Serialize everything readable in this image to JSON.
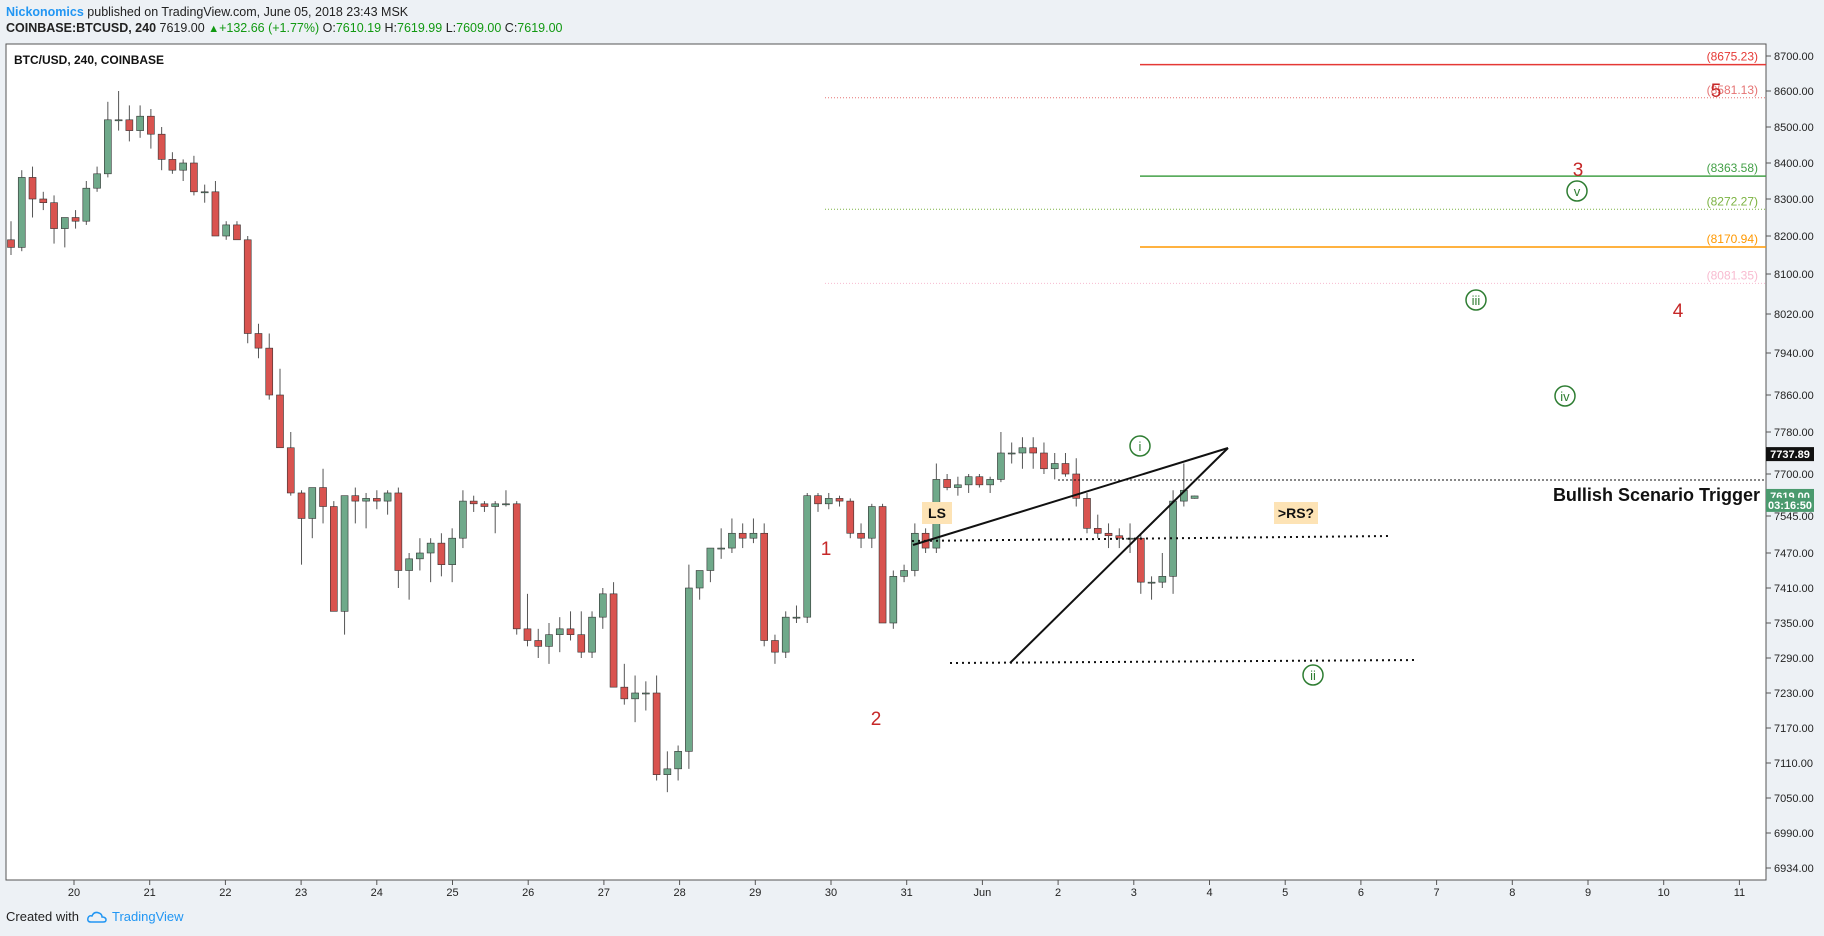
{
  "header": {
    "author": "Nickonomics",
    "published_text": "published on TradingView.com, June 05, 2018 23:43 MSK",
    "symbol_text": "COINBASE:BTCUSD, 240",
    "last": "7619.00",
    "change": "+132.66 (+1.77%)",
    "open_label": "O:",
    "open": "7610.19",
    "high_label": "H:",
    "high": "7619.99",
    "low_label": "L:",
    "low": "7609.00",
    "close_label": "C:",
    "close": "7619.00"
  },
  "footer": {
    "created_with": "Created with",
    "brand": "TradingView"
  },
  "chart_data": {
    "type": "candlestick",
    "title": "BTC/USD, 240, COINBASE",
    "ylim": [
      6900,
      8740
    ],
    "y_ticks": [
      "8700.00",
      "8600.00",
      "8500.00",
      "8400.00",
      "8300.00",
      "8200.00",
      "8100.00",
      "8020.00",
      "7940.00",
      "7860.00",
      "7780.00",
      "7700.00",
      "7545.00",
      "7470.00",
      "7410.00",
      "7350.00",
      "7290.00",
      "7230.00",
      "7170.00",
      "7110.00",
      "7050.00",
      "6990.00",
      "6934.00"
    ],
    "x_ticks": [
      "20",
      "21",
      "22",
      "23",
      "24",
      "25",
      "26",
      "27",
      "28",
      "29",
      "30",
      "31",
      "Jun",
      "2",
      "3",
      "4",
      "5",
      "6",
      "7",
      "8",
      "9",
      "10",
      "11"
    ],
    "candles": [
      [
        8190,
        8240,
        8150,
        8170
      ],
      [
        8170,
        8380,
        8160,
        8360
      ],
      [
        8360,
        8390,
        8250,
        8300
      ],
      [
        8300,
        8320,
        8270,
        8290
      ],
      [
        8290,
        8310,
        8180,
        8220
      ],
      [
        8220,
        8250,
        8170,
        8250
      ],
      [
        8250,
        8270,
        8220,
        8240
      ],
      [
        8240,
        8350,
        8230,
        8330
      ],
      [
        8330,
        8390,
        8320,
        8370
      ],
      [
        8370,
        8570,
        8360,
        8520
      ],
      [
        8520,
        8600,
        8490,
        8520
      ],
      [
        8520,
        8560,
        8460,
        8490
      ],
      [
        8490,
        8560,
        8470,
        8530
      ],
      [
        8530,
        8550,
        8440,
        8480
      ],
      [
        8480,
        8500,
        8380,
        8410
      ],
      [
        8410,
        8430,
        8370,
        8380
      ],
      [
        8380,
        8410,
        8350,
        8400
      ],
      [
        8400,
        8420,
        8310,
        8320
      ],
      [
        8320,
        8340,
        8290,
        8320
      ],
      [
        8320,
        8350,
        8200,
        8200
      ],
      [
        8200,
        8240,
        8190,
        8230
      ],
      [
        8230,
        8240,
        8190,
        8190
      ],
      [
        8190,
        8200,
        7960,
        7980
      ],
      [
        7980,
        8000,
        7930,
        7950
      ],
      [
        7950,
        7980,
        7850,
        7860
      ],
      [
        7860,
        7910,
        7750,
        7750
      ],
      [
        7750,
        7780,
        7620,
        7630
      ],
      [
        7630,
        7640,
        7450,
        7540
      ],
      [
        7540,
        7640,
        7500,
        7650
      ],
      [
        7650,
        7710,
        7530,
        7580
      ],
      [
        7580,
        7600,
        7370,
        7370
      ],
      [
        7370,
        7620,
        7330,
        7620
      ],
      [
        7620,
        7650,
        7530,
        7600
      ],
      [
        7600,
        7630,
        7520,
        7610
      ],
      [
        7610,
        7640,
        7570,
        7600
      ],
      [
        7600,
        7640,
        7550,
        7630
      ],
      [
        7630,
        7650,
        7410,
        7440
      ],
      [
        7440,
        7470,
        7390,
        7460
      ],
      [
        7460,
        7500,
        7440,
        7470
      ],
      [
        7470,
        7500,
        7420,
        7490
      ],
      [
        7490,
        7510,
        7430,
        7450
      ],
      [
        7450,
        7520,
        7420,
        7500
      ],
      [
        7500,
        7640,
        7480,
        7600
      ],
      [
        7600,
        7620,
        7560,
        7590
      ],
      [
        7590,
        7600,
        7560,
        7580
      ],
      [
        7580,
        7600,
        7510,
        7590
      ],
      [
        7590,
        7640,
        7580,
        7590
      ],
      [
        7590,
        7600,
        7330,
        7340
      ],
      [
        7340,
        7400,
        7310,
        7320
      ],
      [
        7320,
        7340,
        7290,
        7310
      ],
      [
        7310,
        7350,
        7280,
        7330
      ],
      [
        7330,
        7360,
        7300,
        7340
      ],
      [
        7340,
        7370,
        7320,
        7330
      ],
      [
        7330,
        7370,
        7290,
        7300
      ],
      [
        7300,
        7370,
        7290,
        7360
      ],
      [
        7360,
        7410,
        7340,
        7400
      ],
      [
        7400,
        7420,
        7240,
        7240
      ],
      [
        7240,
        7280,
        7210,
        7220
      ],
      [
        7220,
        7260,
        7180,
        7230
      ],
      [
        7230,
        7250,
        7200,
        7230
      ],
      [
        7230,
        7260,
        7080,
        7090
      ],
      [
        7090,
        7130,
        7060,
        7100
      ],
      [
        7100,
        7140,
        7080,
        7130
      ],
      [
        7130,
        7450,
        7100,
        7410
      ],
      [
        7410,
        7440,
        7390,
        7440
      ],
      [
        7440,
        7480,
        7420,
        7480
      ],
      [
        7480,
        7520,
        7460,
        7480
      ],
      [
        7480,
        7540,
        7470,
        7510
      ],
      [
        7510,
        7530,
        7480,
        7500
      ],
      [
        7500,
        7540,
        7490,
        7510
      ],
      [
        7510,
        7530,
        7310,
        7320
      ],
      [
        7320,
        7330,
        7280,
        7300
      ],
      [
        7300,
        7370,
        7290,
        7360
      ],
      [
        7360,
        7380,
        7350,
        7360
      ],
      [
        7360,
        7630,
        7350,
        7620
      ],
      [
        7620,
        7630,
        7560,
        7590
      ],
      [
        7590,
        7630,
        7570,
        7610
      ],
      [
        7610,
        7620,
        7580,
        7600
      ],
      [
        7600,
        7610,
        7500,
        7510
      ],
      [
        7510,
        7530,
        7480,
        7500
      ],
      [
        7500,
        7590,
        7480,
        7580
      ],
      [
        7580,
        7590,
        7350,
        7350
      ],
      [
        7350,
        7440,
        7340,
        7430
      ],
      [
        7430,
        7450,
        7420,
        7440
      ],
      [
        7440,
        7530,
        7430,
        7510
      ],
      [
        7510,
        7520,
        7470,
        7480
      ],
      [
        7480,
        7720,
        7470,
        7680
      ],
      [
        7680,
        7700,
        7640,
        7650
      ],
      [
        7650,
        7690,
        7620,
        7660
      ],
      [
        7660,
        7700,
        7630,
        7690
      ],
      [
        7690,
        7700,
        7650,
        7660
      ],
      [
        7660,
        7690,
        7630,
        7680
      ],
      [
        7680,
        7780,
        7670,
        7740
      ],
      [
        7740,
        7760,
        7720,
        7740
      ],
      [
        7740,
        7770,
        7710,
        7750
      ],
      [
        7750,
        7770,
        7710,
        7740
      ],
      [
        7740,
        7760,
        7700,
        7710
      ],
      [
        7710,
        7740,
        7680,
        7720
      ],
      [
        7720,
        7740,
        7690,
        7700
      ],
      [
        7700,
        7730,
        7580,
        7610
      ],
      [
        7610,
        7630,
        7510,
        7520
      ],
      [
        7520,
        7550,
        7500,
        7510
      ],
      [
        7510,
        7530,
        7480,
        7505
      ],
      [
        7505,
        7520,
        7480,
        7500
      ],
      [
        7500,
        7530,
        7470,
        7500
      ],
      [
        7500,
        7510,
        7400,
        7420
      ],
      [
        7420,
        7430,
        7390,
        7420
      ],
      [
        7420,
        7470,
        7410,
        7430
      ],
      [
        7430,
        7640,
        7400,
        7600
      ],
      [
        7600,
        7720,
        7580,
        7640
      ],
      [
        7610,
        7620,
        7609,
        7619
      ]
    ],
    "fib_levels": [
      {
        "label": "(8675.23)",
        "value": 8675.23,
        "color": "#e53935"
      },
      {
        "label": "(8581.13)",
        "value": 8581.13,
        "color": "#e57373"
      },
      {
        "label": "(8363.58)",
        "value": 8363.58,
        "color": "#43a047"
      },
      {
        "label": "(8272.27)",
        "value": 8272.27,
        "color": "#7cb342"
      },
      {
        "label": "(8170.94)",
        "value": 8170.94,
        "color": "#ff9800"
      },
      {
        "label": "(8081.35)",
        "value": 8081.35,
        "color": "#f8bbd0"
      }
    ],
    "price_markers": [
      {
        "label": "7737.89",
        "value": 7737.89,
        "color": "#111111"
      },
      {
        "label": "7619.00",
        "value": 7619.0,
        "color": "#4a9a6e"
      },
      {
        "label": "03:16:50",
        "value": 7586.0,
        "color": "#4a9a6e"
      }
    ],
    "annotations": {
      "trigger": "Bullish Scenario Trigger",
      "ls": "LS",
      "rs": ">RS?",
      "wave_red": [
        "1",
        "2",
        "3",
        "4",
        "5"
      ],
      "wave_green": [
        "i",
        "ii",
        "iii",
        "iv",
        "v"
      ]
    }
  }
}
